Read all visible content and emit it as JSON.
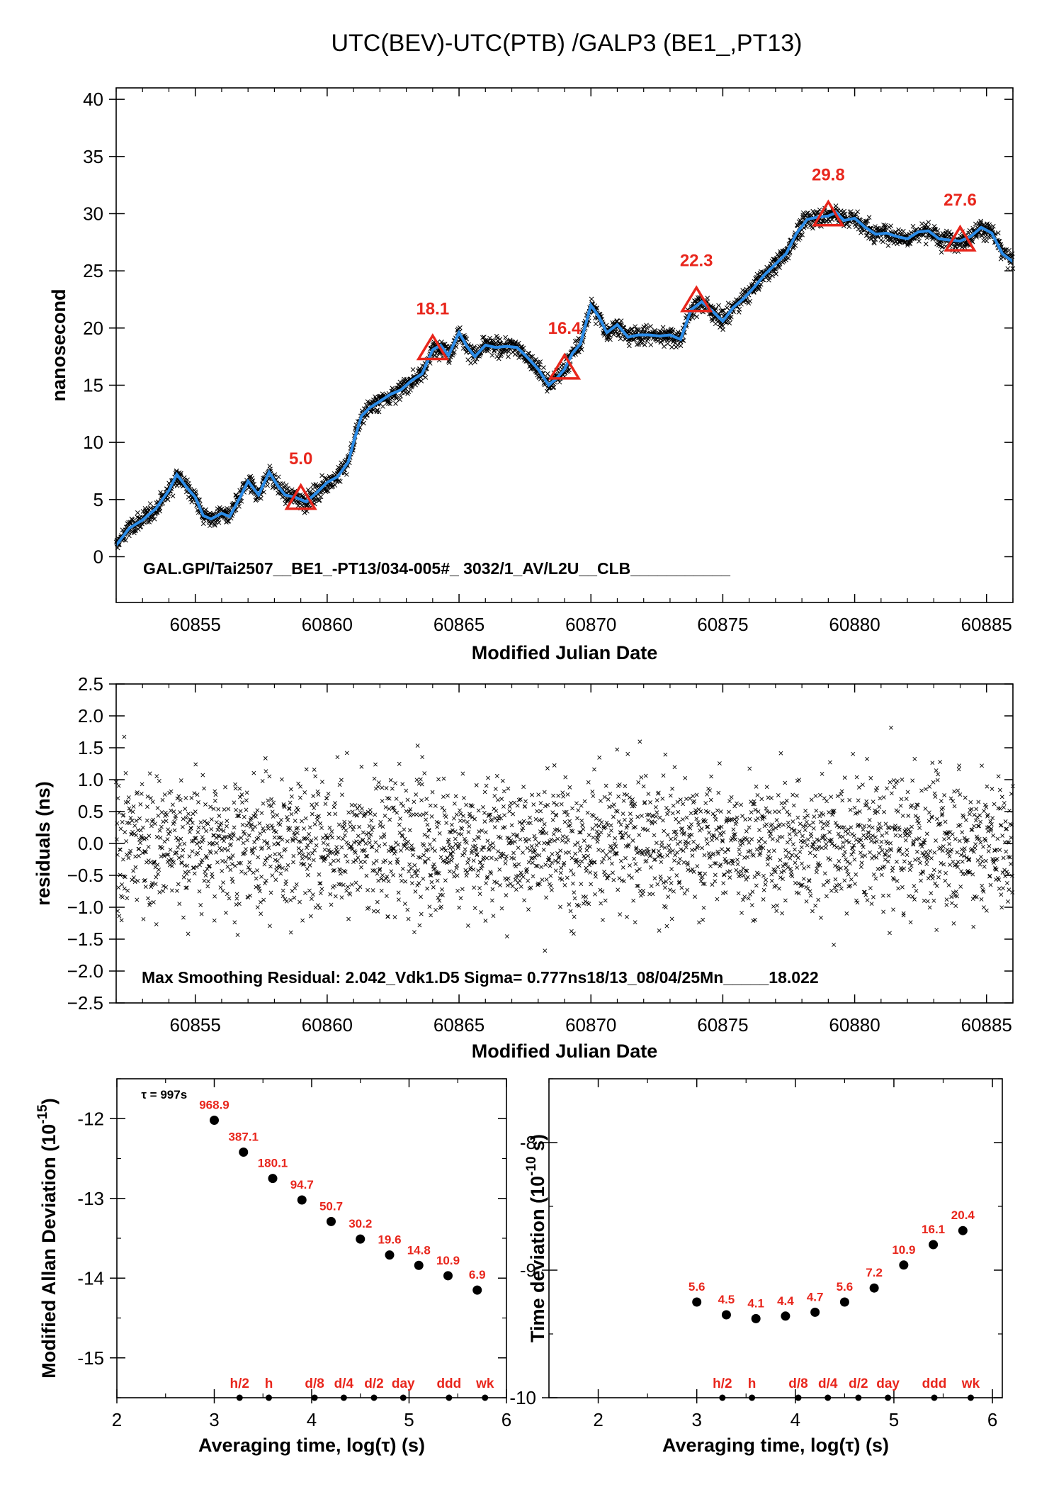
{
  "chart_data": [
    {
      "type": "line",
      "title": "UTC(BEV)-UTC(PTB)  /GALP3  (BE1_,PT13)",
      "xlabel": "Modified Julian Date",
      "ylabel": "nanosecond",
      "xlim": [
        60852.0,
        60886.0
      ],
      "ylim": [
        -4,
        41
      ],
      "xticks": [
        60855,
        60860,
        60865,
        60870,
        60875,
        60880,
        60885
      ],
      "yticks": [
        0,
        5,
        10,
        15,
        20,
        25,
        30,
        35,
        40
      ],
      "caption": "GAL.GPI/Tai2507__BE1_-PT13/034-005#_  3032/1_AV/L2U__CLB___________",
      "colors": {
        "smooth": "#2b8ce8",
        "markers": "#e8261c",
        "raw": "#000000"
      },
      "series": [
        {
          "kind": "smoothed",
          "x": [
            60852.0,
            60852.5,
            60853.0,
            60853.5,
            60854.0,
            60854.3,
            60854.7,
            60855.0,
            60855.3,
            60855.6,
            60856.0,
            60856.3,
            60856.7,
            60857.0,
            60857.4,
            60857.8,
            60858.1,
            60858.4,
            60858.8,
            60859.2,
            60859.6,
            60860.0,
            60860.4,
            60860.8,
            60861.0,
            60861.3,
            60861.6,
            60862.0,
            60862.4,
            60862.8,
            60863.2,
            60863.6,
            60864.0,
            60864.3,
            60864.6,
            60865.0,
            60865.3,
            60865.6,
            60866.0,
            60866.4,
            60866.8,
            60867.2,
            60867.6,
            60868.0,
            60868.4,
            60868.7,
            60869.0,
            60869.3,
            60869.6,
            60870.0,
            60870.3,
            60870.6,
            60871.0,
            60871.4,
            60871.8,
            60872.2,
            60872.6,
            60873.0,
            60873.4,
            60873.8,
            60874.2,
            60874.6,
            60875.0,
            60875.4,
            60875.8,
            60876.2,
            60876.6,
            60877.0,
            60877.4,
            60877.8,
            60878.2,
            60878.6,
            60879.0,
            60879.3,
            60879.6,
            60880.0,
            60880.4,
            60880.8,
            60881.2,
            60881.6,
            60882.0,
            60882.4,
            60882.8,
            60883.2,
            60883.6,
            60884.0,
            60884.4,
            60884.8,
            60885.2,
            60885.6,
            60886.0
          ],
          "y": [
            1.0,
            2.5,
            3.2,
            4.2,
            5.8,
            7.2,
            6.0,
            5.2,
            3.6,
            3.3,
            3.8,
            3.5,
            5.2,
            6.6,
            5.4,
            7.4,
            6.3,
            5.4,
            5.2,
            4.8,
            5.6,
            6.5,
            7.0,
            8.3,
            10.0,
            12.3,
            13.0,
            13.6,
            14.2,
            14.6,
            15.4,
            16.0,
            18.1,
            18.5,
            17.6,
            19.6,
            18.4,
            17.5,
            18.5,
            18.3,
            18.4,
            18.3,
            17.4,
            16.4,
            15.0,
            15.6,
            16.4,
            17.8,
            18.6,
            22.0,
            21.0,
            19.6,
            20.3,
            19.2,
            19.4,
            19.4,
            19.3,
            19.4,
            19.0,
            21.6,
            22.3,
            21.5,
            20.6,
            21.8,
            22.6,
            23.6,
            24.7,
            25.6,
            26.5,
            28.3,
            29.5,
            29.7,
            29.8,
            30.1,
            29.4,
            29.6,
            28.8,
            28.2,
            28.3,
            28.0,
            27.8,
            28.4,
            28.5,
            27.8,
            27.7,
            27.6,
            28.0,
            28.8,
            28.3,
            26.5,
            25.8
          ]
        },
        {
          "kind": "markers",
          "x": [
            60859.0,
            60864.0,
            60869.0,
            60874.0,
            60879.0,
            60884.0
          ],
          "y": [
            5.0,
            18.1,
            16.4,
            22.3,
            29.8,
            27.6
          ],
          "labels": [
            "5.0",
            "18.1",
            "16.4",
            "22.3",
            "29.8",
            "27.6"
          ]
        }
      ]
    },
    {
      "type": "scatter",
      "xlabel": "Modified Julian Date",
      "ylabel": "residuals (ns)",
      "xlim": [
        60852.0,
        60886.0
      ],
      "ylim": [
        -2.5,
        2.5
      ],
      "xticks": [
        60855,
        60860,
        60865,
        60870,
        60875,
        60880,
        60885
      ],
      "yticks": [
        "2.5",
        "2.0",
        "1.5",
        "1.0",
        "0.5",
        "0.0",
        "−0.5",
        "−1.0",
        "−1.5",
        "−2.0",
        "−2.5"
      ],
      "ytick_values": [
        2.5,
        2.0,
        1.5,
        1.0,
        0.5,
        0.0,
        -0.5,
        -1.0,
        -1.5,
        -2.0,
        -2.5
      ],
      "annotation": "Max Smoothing Residual: 2.042_Vdk1.D5  Sigma= 0.777ns18/13_08/04/25Mn_____18.022",
      "sigma": 0.777,
      "max_residual": 2.042
    },
    {
      "type": "scatter",
      "xlabel": "Averaging time, log(τ) (s)",
      "ylabel": "Modified Allan Deviation (10",
      "ylabel_sup": "-15",
      "ylabel_end": ")",
      "xlim": [
        2,
        6
      ],
      "ylim": [
        -15.5,
        -11.5
      ],
      "xticks": [
        2,
        3,
        4,
        5,
        6
      ],
      "yticks": [
        -12,
        -13,
        -14,
        -15
      ],
      "tau_note": "τ = 997s",
      "x": [
        3.0,
        3.3,
        3.6,
        3.9,
        4.2,
        4.5,
        4.8,
        5.1,
        5.4,
        5.7
      ],
      "y": [
        -12.02,
        -12.42,
        -12.75,
        -13.02,
        -13.29,
        -13.51,
        -13.71,
        -13.84,
        -13.97,
        -14.15
      ],
      "labels": [
        "968.9",
        "387.1",
        "180.1",
        "94.7",
        "50.7",
        "30.2",
        "19.6",
        "14.8",
        "10.9",
        "6.9"
      ],
      "markers": {
        "x": [
          3.26,
          3.56,
          4.03,
          4.33,
          4.64,
          4.94,
          5.41,
          5.78
        ],
        "labels": [
          "h/2",
          "h",
          "d/8",
          "d/4",
          "d/2",
          "day",
          "ddd",
          "wk"
        ]
      }
    },
    {
      "type": "scatter",
      "xlabel": "Averaging time, log(τ) (s)",
      "ylabel": "Time deviation (10",
      "ylabel_sup": "-10",
      "ylabel_end": " s)",
      "xlim": [
        1.5,
        6.1
      ],
      "ylim": [
        -10.0,
        -7.5
      ],
      "xticks": [
        2,
        3,
        4,
        5,
        6
      ],
      "yticks": [
        -8,
        -9,
        -10
      ],
      "x": [
        3.0,
        3.3,
        3.6,
        3.9,
        4.2,
        4.5,
        4.8,
        5.1,
        5.4,
        5.7
      ],
      "y": [
        -9.25,
        -9.35,
        -9.38,
        -9.36,
        -9.33,
        -9.25,
        -9.14,
        -8.96,
        -8.8,
        -8.69
      ],
      "labels": [
        "5.6",
        "4.5",
        "4.1",
        "4.4",
        "4.7",
        "5.6",
        "7.2",
        "10.9",
        "16.1",
        "20.4"
      ],
      "markers": {
        "x": [
          3.26,
          3.56,
          4.03,
          4.33,
          4.64,
          4.94,
          5.41,
          5.78
        ],
        "labels": [
          "h/2",
          "h",
          "d/8",
          "d/4",
          "d/2",
          "day",
          "ddd",
          "wk"
        ]
      }
    }
  ]
}
